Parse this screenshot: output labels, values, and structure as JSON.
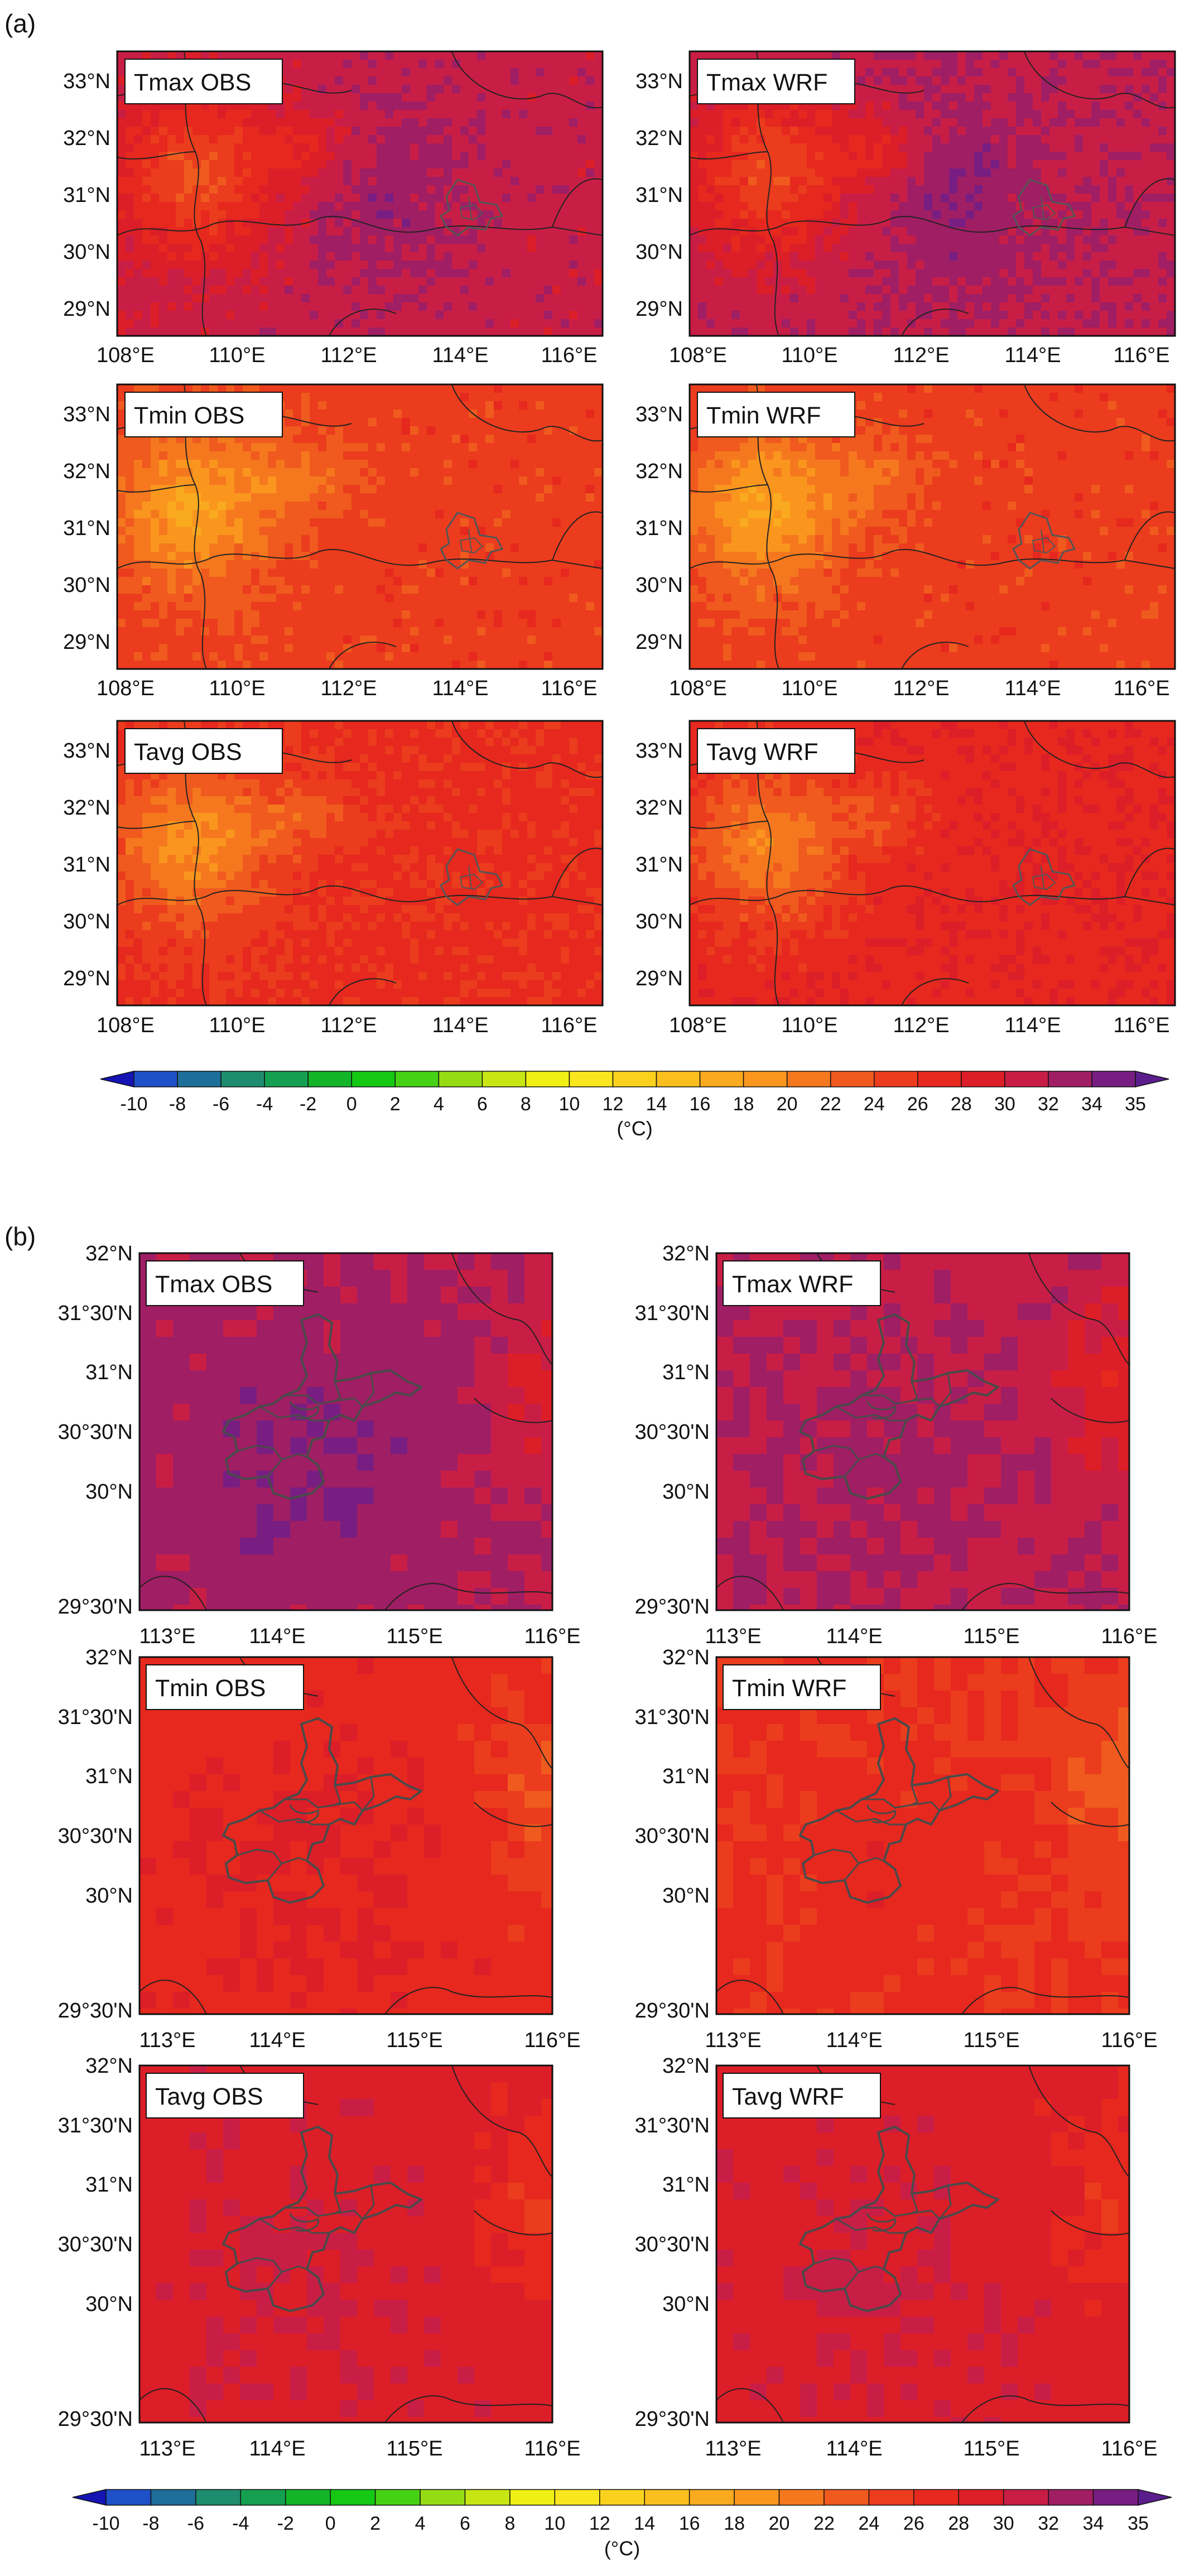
{
  "figure": {
    "panel_a": {
      "letter": "(a)",
      "lon_ticks": [
        "108°E",
        "110°E",
        "112°E",
        "114°E",
        "116°E"
      ],
      "lat_ticks": [
        "33°N",
        "32°N",
        "31°N",
        "30°N",
        "29°N"
      ],
      "maps": [
        {
          "label": "Tmax OBS",
          "variable": "Tmax",
          "source": "OBS",
          "base_temp_c": 31
        },
        {
          "label": "Tmax WRF",
          "variable": "Tmax",
          "source": "WRF",
          "base_temp_c": 31.5
        },
        {
          "label": "Tmin OBS",
          "variable": "Tmin",
          "source": "OBS",
          "base_temp_c": 25
        },
        {
          "label": "Tmin WRF",
          "variable": "Tmin",
          "source": "WRF",
          "base_temp_c": 25
        },
        {
          "label": "Tavg OBS",
          "variable": "Tavg",
          "source": "OBS",
          "base_temp_c": 26.5
        },
        {
          "label": "Tavg WRF",
          "variable": "Tavg",
          "source": "WRF",
          "base_temp_c": 27.5
        }
      ]
    },
    "panel_b": {
      "letter": "(b)",
      "lon_ticks": [
        "113°E",
        "114°E",
        "115°E",
        "116°E"
      ],
      "lat_ticks": [
        "32°N",
        "31°30'N",
        "31°N",
        "30°30'N",
        "30°N",
        "29°30'N"
      ],
      "maps": [
        {
          "label": "Tmax OBS",
          "variable": "Tmax",
          "source": "OBS",
          "base_temp_c": 32.5
        },
        {
          "label": "Tmax WRF",
          "variable": "Tmax",
          "source": "WRF",
          "base_temp_c": 31.5
        },
        {
          "label": "Tmin OBS",
          "variable": "Tmin",
          "source": "OBS",
          "base_temp_c": 27
        },
        {
          "label": "Tmin WRF",
          "variable": "Tmin",
          "source": "WRF",
          "base_temp_c": 26
        },
        {
          "label": "Tavg OBS",
          "variable": "Tavg",
          "source": "OBS",
          "base_temp_c": 29
        },
        {
          "label": "Tavg WRF",
          "variable": "Tavg",
          "source": "WRF",
          "base_temp_c": 29
        }
      ]
    },
    "colorbar": {
      "unit": "(°C)",
      "labels": [
        "-10",
        "-8",
        "-6",
        "-4",
        "-2",
        "0",
        "2",
        "4",
        "6",
        "8",
        "10",
        "12",
        "14",
        "16",
        "18",
        "20",
        "22",
        "24",
        "26",
        "28",
        "30",
        "32",
        "34",
        "35"
      ],
      "colors": [
        "#1414b4",
        "#1e50c8",
        "#1e6e9a",
        "#1e8c6e",
        "#14a050",
        "#14b428",
        "#14c814",
        "#46d214",
        "#96dc14",
        "#c8e614",
        "#f0f014",
        "#fae61e",
        "#fad21e",
        "#fabe1e",
        "#faaa1e",
        "#fa961e",
        "#f5781e",
        "#f05a1e",
        "#eb3c1e",
        "#e6281e",
        "#dc1e28",
        "#c81e46",
        "#a01e64",
        "#781e82",
        "#5a1e8c"
      ]
    }
  }
}
